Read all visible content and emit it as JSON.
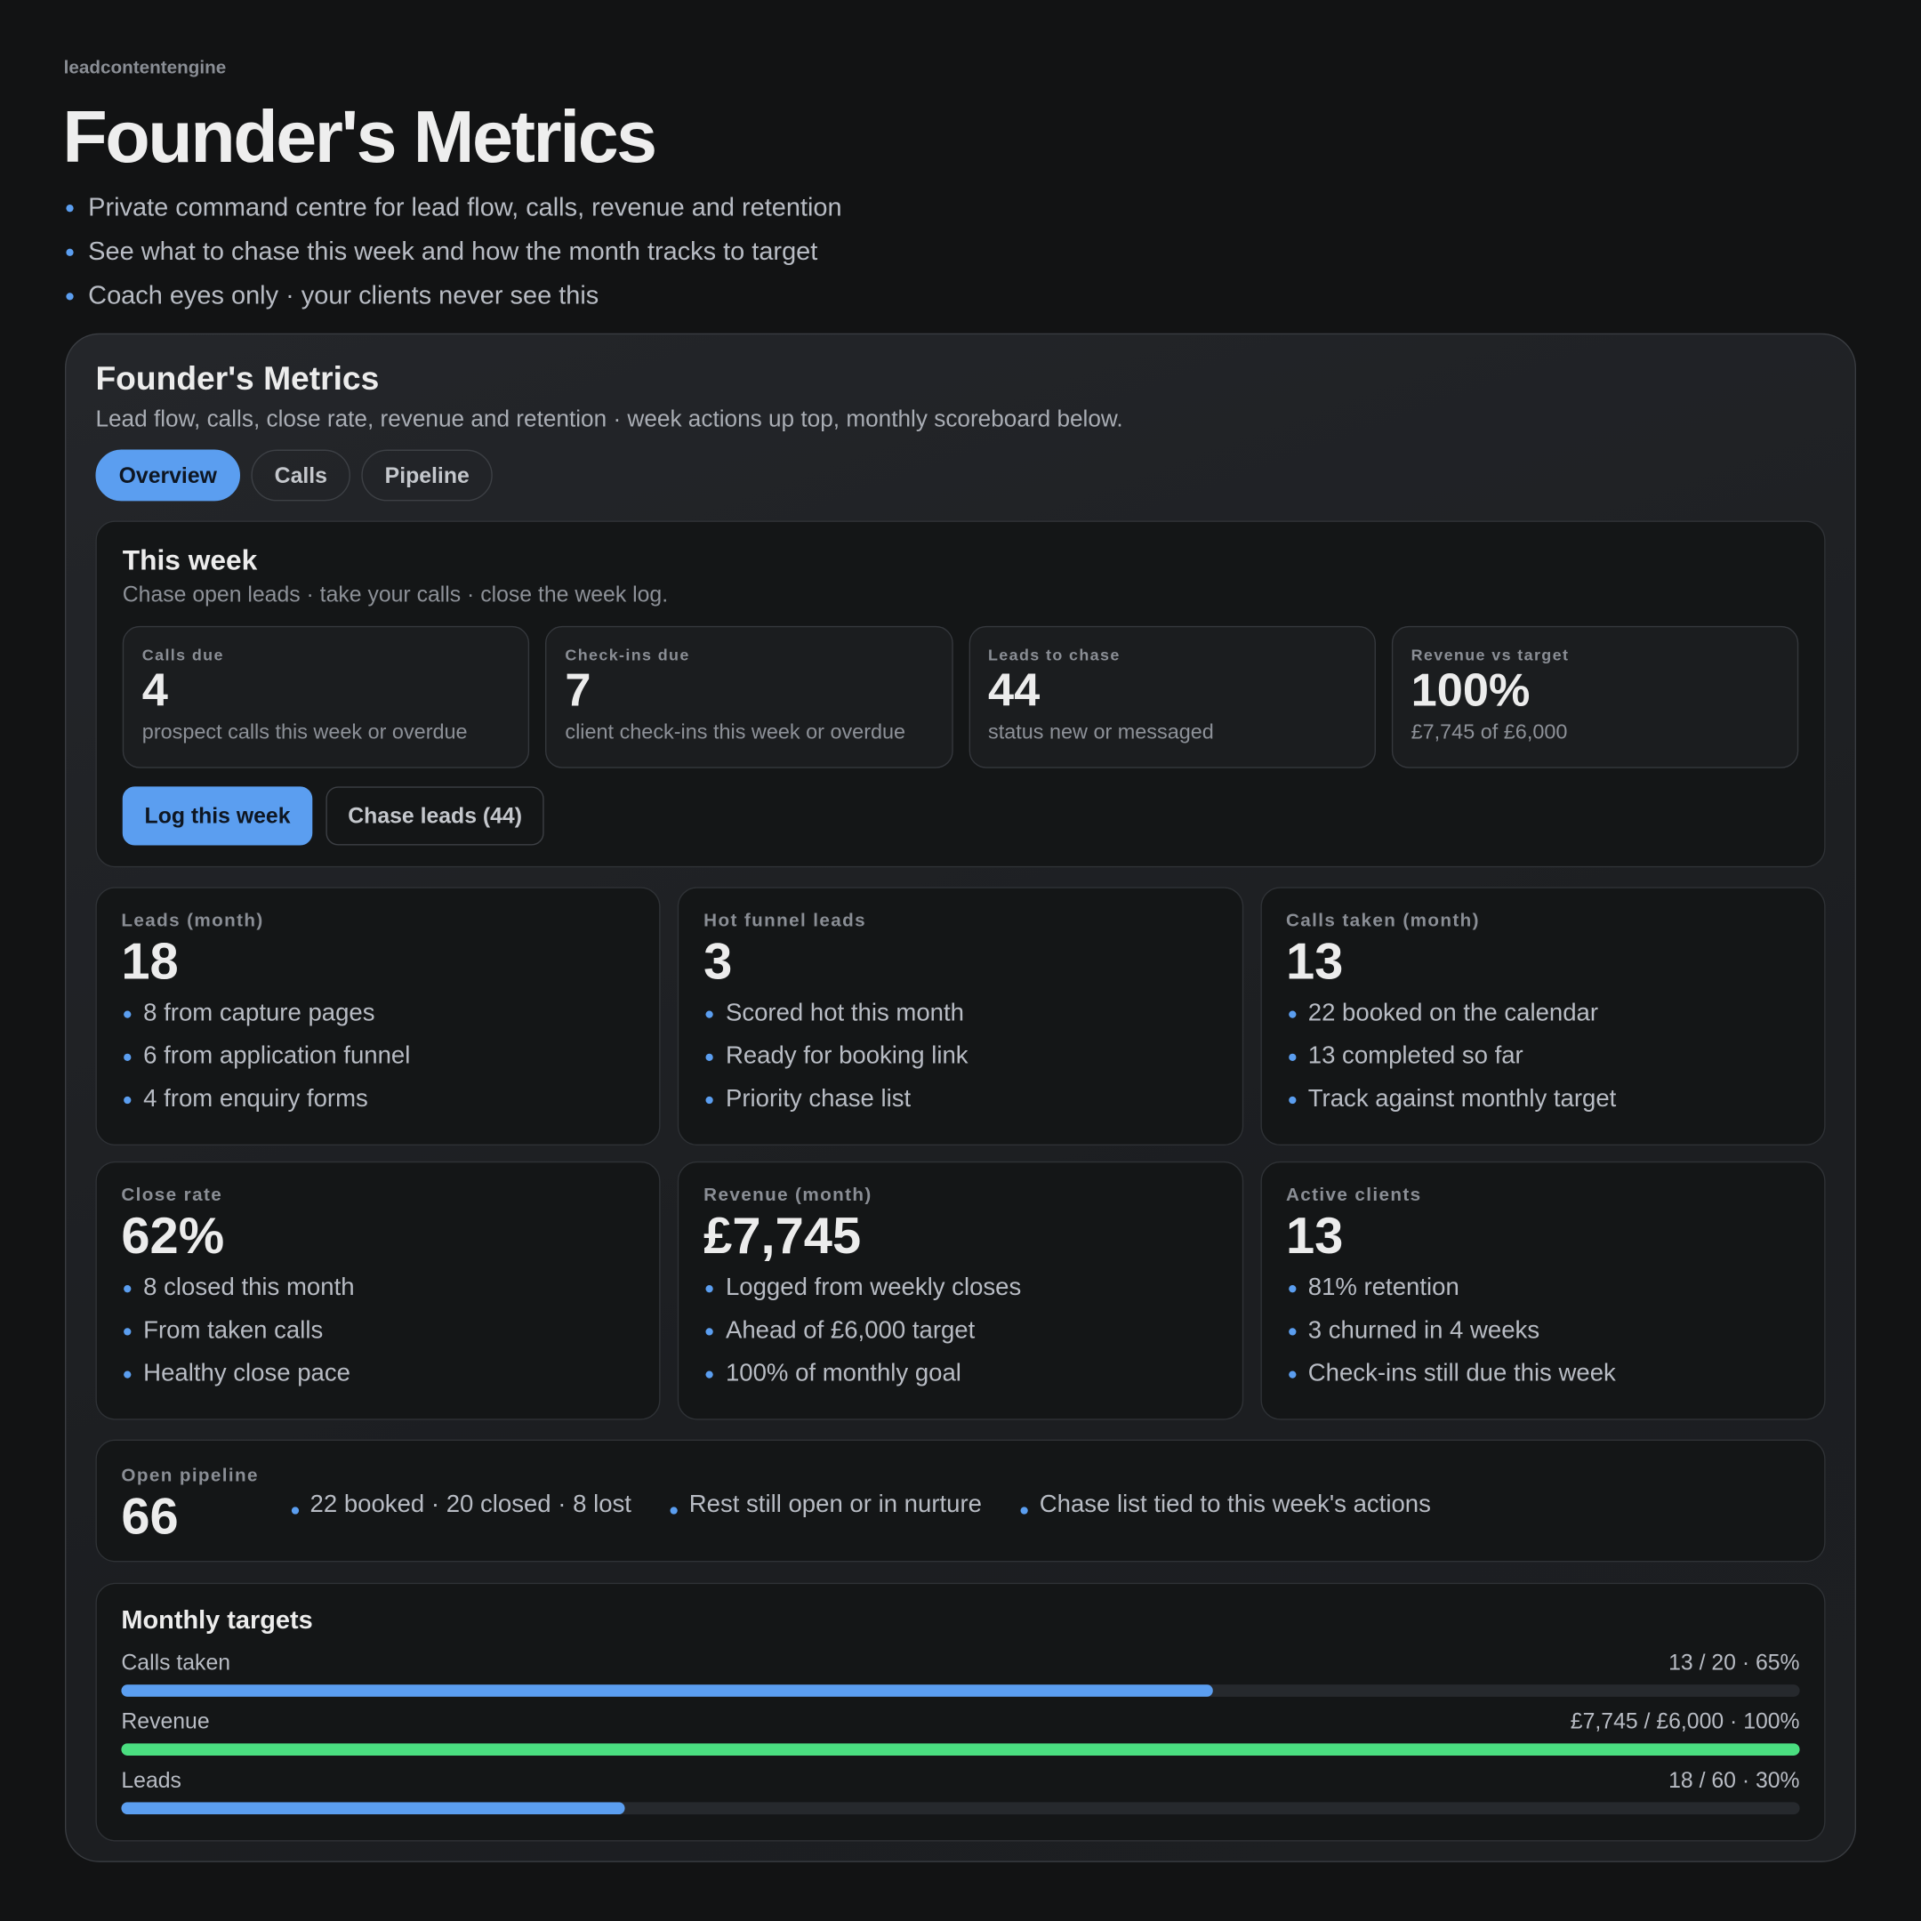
{
  "header": {
    "brand": "leadcontentengine",
    "title": "Founder's Metrics",
    "bullets": [
      "Private command centre for lead flow, calls, revenue and retention",
      "See what to chase this week and how the month tracks to target",
      "Coach eyes only · your clients never see this"
    ]
  },
  "panel": {
    "title": "Founder's Metrics",
    "subtitle": "Lead flow, calls, close rate, revenue and retention · week actions up top, monthly scoreboard below.",
    "tabs": [
      "Overview",
      "Calls",
      "Pipeline"
    ],
    "week": {
      "title": "This week",
      "subtitle": "Chase open leads · take your calls · close the week log.",
      "stats": [
        {
          "label": "Calls due",
          "value": "4",
          "note": "prospect calls this week or overdue"
        },
        {
          "label": "Check-ins due",
          "value": "7",
          "note": "client check-ins this week or overdue"
        },
        {
          "label": "Leads to chase",
          "value": "44",
          "note": "status new or messaged"
        },
        {
          "label": "Revenue vs target",
          "value": "100%",
          "note": "£7,745 of £6,000"
        }
      ],
      "actions": [
        "Log this week",
        "Chase leads (44)"
      ]
    },
    "cards": [
      {
        "label": "Leads (month)",
        "value": "18",
        "bullets": [
          "8 from capture pages",
          "6 from application funnel",
          "4 from enquiry forms"
        ]
      },
      {
        "label": "Hot funnel leads",
        "value": "3",
        "bullets": [
          "Scored hot this month",
          "Ready for booking link",
          "Priority chase list"
        ]
      },
      {
        "label": "Calls taken (month)",
        "value": "13",
        "bullets": [
          "22 booked on the calendar",
          "13 completed so far",
          "Track against monthly target"
        ]
      },
      {
        "label": "Close rate",
        "value": "62%",
        "bullets": [
          "8 closed this month",
          "From taken calls",
          "Healthy close pace"
        ]
      },
      {
        "label": "Revenue (month)",
        "value": "£7,745",
        "bullets": [
          "Logged from weekly closes",
          "Ahead of £6,000 target",
          "100% of monthly goal"
        ]
      },
      {
        "label": "Active clients",
        "value": "13",
        "bullets": [
          "81% retention",
          "3 churned in 4 weeks",
          "Check-ins still due this week"
        ]
      }
    ],
    "pipeline": {
      "label": "Open pipeline",
      "value": "66",
      "bullets": [
        "22 booked · 20 closed · 8 lost",
        "Rest still open or in nurture",
        "Chase list tied to this week's actions"
      ]
    },
    "targets": {
      "title": "Monthly targets",
      "rows": [
        {
          "label": "Calls taken",
          "text": "13 / 20 · 65%",
          "percent": 65,
          "color": "#5b9ef0"
        },
        {
          "label": "Revenue",
          "text": "£7,745 / £6,000 · 100%",
          "percent": 100,
          "color": "#4ade80"
        },
        {
          "label": "Leads",
          "text": "18 / 60 · 30%",
          "percent": 30,
          "color": "#5b9ef0"
        }
      ]
    }
  }
}
